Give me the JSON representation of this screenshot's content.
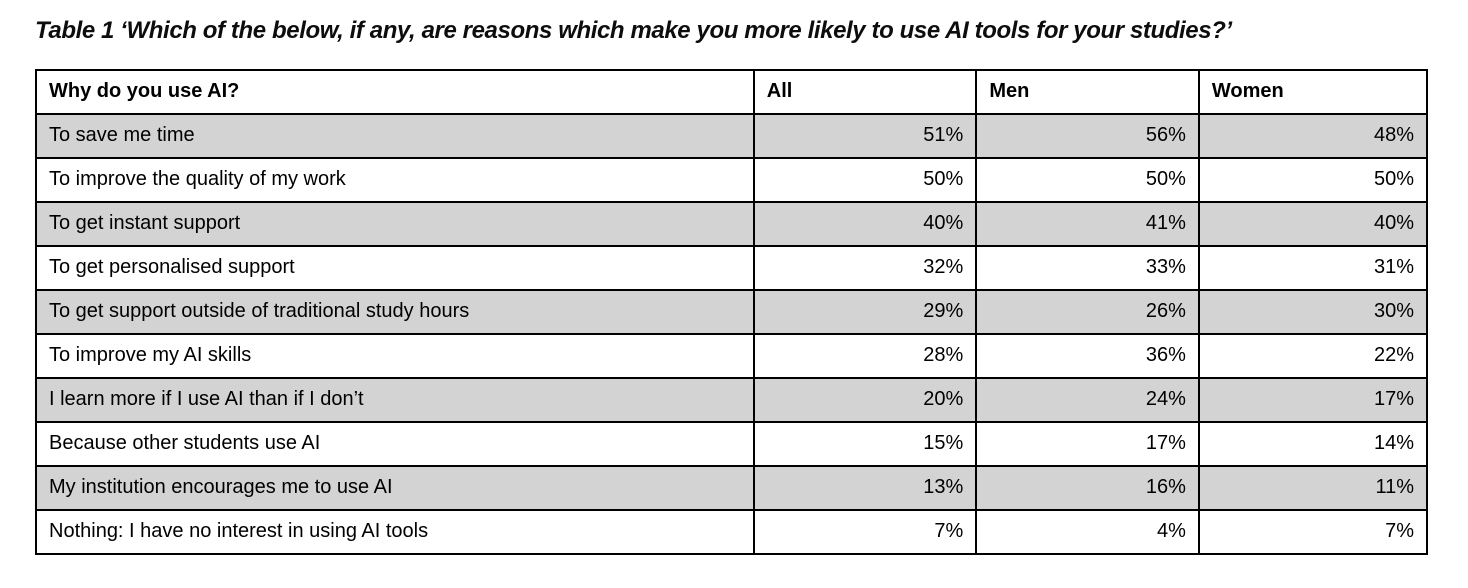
{
  "title": "Table 1 ‘Which of the below, if any, are reasons which make you more likely to use AI tools for your studies?’",
  "table": {
    "columns": [
      "Why do you use AI?",
      "All",
      "Men",
      "Women"
    ],
    "rows": [
      {
        "label": "To save me time",
        "all": "51%",
        "men": "56%",
        "women": "48%",
        "shaded": true
      },
      {
        "label": "To improve the quality of my work",
        "all": "50%",
        "men": "50%",
        "women": "50%",
        "shaded": false
      },
      {
        "label": "To get instant support",
        "all": "40%",
        "men": "41%",
        "women": "40%",
        "shaded": true
      },
      {
        "label": "To get personalised support",
        "all": "32%",
        "men": "33%",
        "women": "31%",
        "shaded": false
      },
      {
        "label": "To get support outside of traditional study hours",
        "all": "29%",
        "men": "26%",
        "women": "30%",
        "shaded": true
      },
      {
        "label": "To improve my AI skills",
        "all": "28%",
        "men": "36%",
        "women": "22%",
        "shaded": false
      },
      {
        "label": "I learn more if I use AI than if I don’t",
        "all": "20%",
        "men": "24%",
        "women": "17%",
        "shaded": true
      },
      {
        "label": "Because other students use AI",
        "all": "15%",
        "men": "17%",
        "women": "14%",
        "shaded": false
      },
      {
        "label": "My institution encourages me to use AI",
        "all": "13%",
        "men": "16%",
        "women": "11%",
        "shaded": true
      },
      {
        "label": "Nothing: I have no interest in using AI tools",
        "all": "7%",
        "men": "4%",
        "women": "7%",
        "shaded": false
      }
    ],
    "colors": {
      "shaded_row": "#d3d3d4",
      "border": "#000000",
      "text": "#000000"
    }
  },
  "chart_data": {
    "type": "table",
    "title": "Table 1 ‘Which of the below, if any, are reasons which make you more likely to use AI tools for your studies?’",
    "categories": [
      "To save me time",
      "To improve the quality of my work",
      "To get instant support",
      "To get personalised support",
      "To get support outside of traditional study hours",
      "To improve my AI skills",
      "I learn more if I use AI than if I don’t",
      "Because other students use AI",
      "My institution encourages me to use AI",
      "Nothing: I have no interest in using AI tools"
    ],
    "series": [
      {
        "name": "All",
        "values": [
          51,
          50,
          40,
          32,
          29,
          28,
          20,
          15,
          13,
          7
        ]
      },
      {
        "name": "Men",
        "values": [
          56,
          50,
          41,
          33,
          26,
          36,
          24,
          17,
          16,
          4
        ]
      },
      {
        "name": "Women",
        "values": [
          48,
          50,
          40,
          31,
          30,
          22,
          17,
          14,
          11,
          7
        ]
      }
    ],
    "value_unit": "%"
  }
}
